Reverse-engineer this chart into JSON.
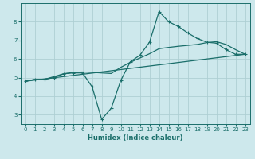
{
  "xlabel": "Humidex (Indice chaleur)",
  "xlim": [
    -0.5,
    23.5
  ],
  "ylim": [
    2.5,
    9.0
  ],
  "yticks": [
    3,
    4,
    5,
    6,
    7,
    8
  ],
  "xticks": [
    0,
    1,
    2,
    3,
    4,
    5,
    6,
    7,
    8,
    9,
    10,
    11,
    12,
    13,
    14,
    15,
    16,
    17,
    18,
    19,
    20,
    21,
    22,
    23
  ],
  "bg_color": "#cde8ec",
  "grid_color": "#aecfd4",
  "line_color": "#1a6e6a",
  "line1_x": [
    0,
    1,
    2,
    3,
    4,
    5,
    6,
    7,
    8,
    9,
    10,
    11,
    12,
    13,
    14,
    15,
    16,
    17,
    18,
    19,
    20,
    21,
    22,
    23
  ],
  "line1_y": [
    4.8,
    4.9,
    4.9,
    5.0,
    5.2,
    5.25,
    5.25,
    4.5,
    2.75,
    3.35,
    4.85,
    5.85,
    6.2,
    6.9,
    8.55,
    8.0,
    7.75,
    7.4,
    7.1,
    6.9,
    6.85,
    6.5,
    6.25,
    6.25
  ],
  "line2_x": [
    0,
    1,
    2,
    3,
    4,
    5,
    6,
    7,
    8,
    9,
    10,
    11,
    12,
    13,
    14,
    15,
    16,
    17,
    18,
    19,
    20,
    21,
    22,
    23
  ],
  "line2_y": [
    4.8,
    4.9,
    4.9,
    5.05,
    5.2,
    5.28,
    5.3,
    5.28,
    5.25,
    5.22,
    5.55,
    5.82,
    6.05,
    6.28,
    6.55,
    6.62,
    6.68,
    6.73,
    6.78,
    6.88,
    6.93,
    6.78,
    6.5,
    6.25
  ],
  "line3_x": [
    0,
    23
  ],
  "line3_y": [
    4.8,
    6.25
  ]
}
